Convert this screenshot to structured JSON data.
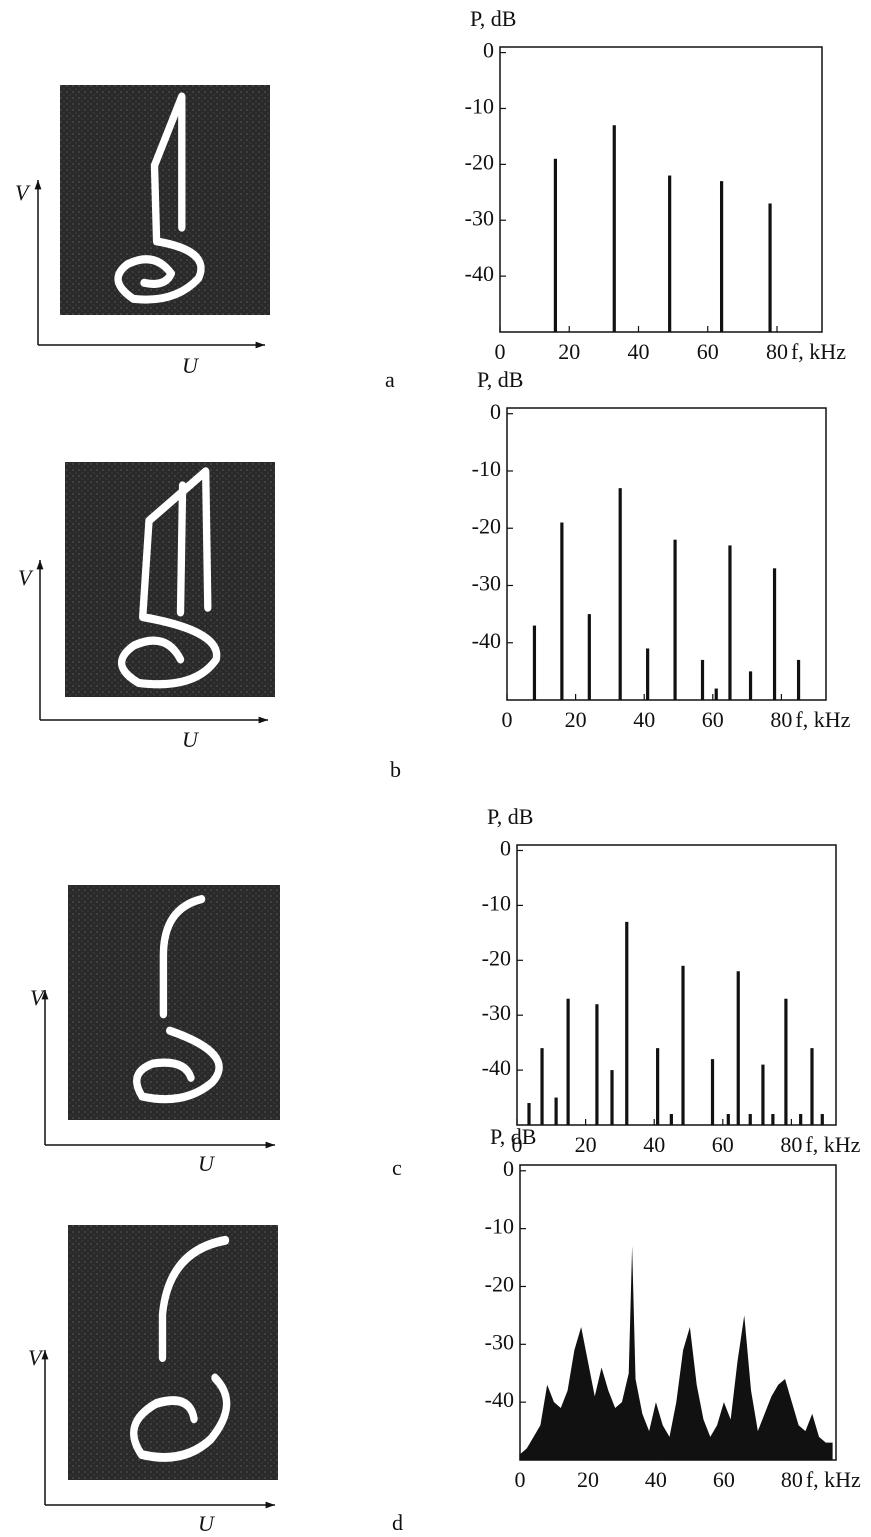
{
  "chart_data": [
    {
      "type": "bar",
      "panel": "a",
      "portrait_y_label": "V",
      "portrait_x_label": "U",
      "y_label": "P, dB",
      "x_label": "f, kHz",
      "x": [
        16,
        33,
        49,
        64,
        78
      ],
      "values": [
        -19,
        -13,
        -22,
        -23,
        -27
      ],
      "color": "#111111",
      "xlim": [
        0,
        93
      ],
      "xticks": [
        0,
        20,
        40,
        60,
        80
      ],
      "ylim": [
        -50,
        1
      ],
      "yticks": [
        0,
        -10,
        -20,
        -30,
        -40
      ]
    },
    {
      "type": "bar",
      "panel": "b",
      "portrait_y_label": "V",
      "portrait_x_label": "U",
      "y_label": "P, dB",
      "x_label": "f, kHz",
      "x": [
        8,
        16,
        24,
        33,
        41,
        49,
        57,
        61,
        65,
        71,
        78,
        85
      ],
      "values": [
        -37,
        -19,
        -35,
        -13,
        -41,
        -22,
        -43,
        -48,
        -23,
        -45,
        -27,
        -43
      ],
      "color": "#111111",
      "xlim": [
        0,
        93
      ],
      "xticks": [
        0,
        20,
        40,
        60,
        80
      ],
      "ylim": [
        -50,
        1
      ],
      "yticks": [
        0,
        -10,
        -20,
        -30,
        -40
      ]
    },
    {
      "type": "bar",
      "panel": "c",
      "portrait_y_label": "V",
      "portrait_x_label": "U",
      "y_label": "P, dB",
      "x_label": "f, kHz",
      "x": [
        3.5,
        7.3,
        11.4,
        14.9,
        23.3,
        27.7,
        32,
        41,
        45,
        48.4,
        57,
        61.6,
        64.5,
        68,
        71.7,
        74.6,
        78.4,
        82.7,
        86,
        89
      ],
      "values": [
        -46,
        -36,
        -45,
        -27,
        -28,
        -40,
        -13,
        -36,
        -48,
        -21,
        -38,
        -48,
        -22,
        -48,
        -39,
        -48,
        -27,
        -48,
        -36,
        -48
      ],
      "color": "#111111",
      "xlim": [
        0,
        93
      ],
      "xticks": [
        0,
        20,
        40,
        60,
        80
      ],
      "ylim": [
        -50,
        1
      ],
      "yticks": [
        0,
        -10,
        -20,
        -30,
        -40
      ]
    },
    {
      "type": "area",
      "panel": "d",
      "portrait_y_label": "V",
      "portrait_x_label": "U",
      "y_label": "P, dB",
      "x_label": "f, kHz",
      "x": [
        0,
        2,
        4,
        6,
        8,
        10,
        12,
        14,
        16,
        18,
        20,
        22,
        24,
        26,
        28,
        30,
        32,
        33,
        34,
        36,
        38,
        40,
        42,
        44,
        46,
        48,
        50,
        52,
        54,
        56,
        58,
        60,
        62,
        64,
        66,
        68,
        70,
        72,
        74,
        76,
        78,
        80,
        82,
        84,
        86,
        88,
        90,
        92
      ],
      "values": [
        -49,
        -48,
        -46,
        -44,
        -37,
        -40,
        -41,
        -38,
        -31,
        -27,
        -33,
        -39,
        -34,
        -38,
        -41,
        -40,
        -35,
        -13,
        -36,
        -42,
        -45,
        -40,
        -44,
        -46,
        -40,
        -31,
        -27,
        -37,
        -43,
        -46,
        -44,
        -40,
        -43,
        -33,
        -25,
        -38,
        -45,
        -42,
        -39,
        -37,
        -36,
        -40,
        -44,
        -45,
        -42,
        -46,
        -47,
        -47
      ],
      "color": "#111111",
      "xlim": [
        0,
        93
      ],
      "xticks": [
        0,
        20,
        40,
        60,
        80
      ],
      "ylim": [
        -50,
        1
      ],
      "yticks": [
        0,
        -10,
        -20,
        -30,
        -40
      ]
    }
  ]
}
